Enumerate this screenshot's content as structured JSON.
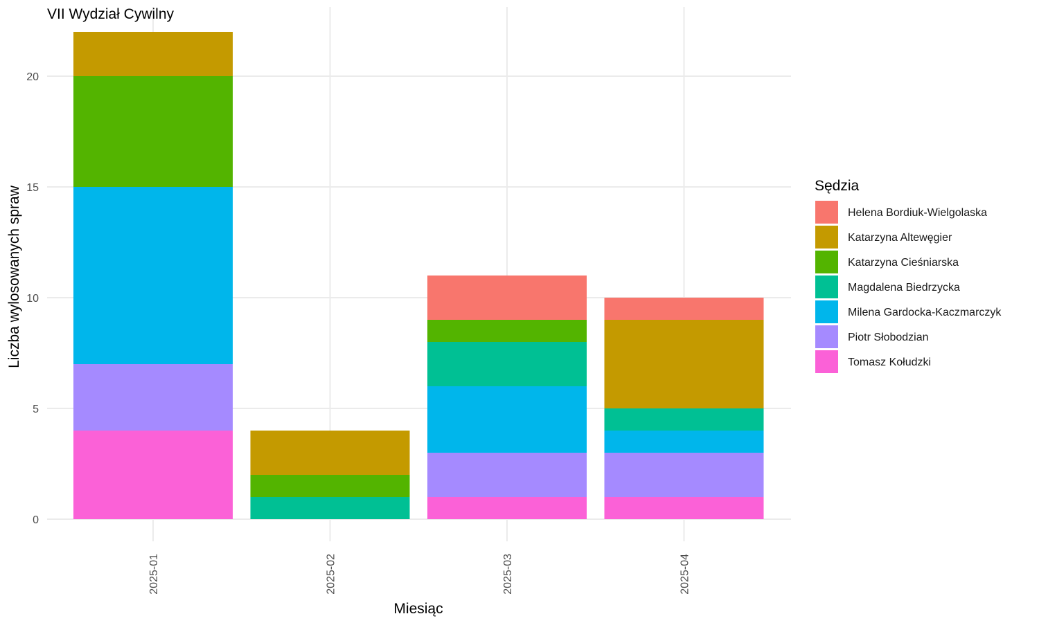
{
  "chart_data": {
    "type": "bar",
    "stacked": true,
    "title": "VII Wydział Cywilny",
    "xlabel": "Miesiąc",
    "ylabel": "Liczba wylosowanych spraw",
    "categories": [
      "2025-01",
      "2025-02",
      "2025-03",
      "2025-04"
    ],
    "ylim": [
      0,
      22
    ],
    "yticks": [
      0,
      5,
      10,
      15,
      20
    ],
    "grid": true,
    "legend": {
      "title": "Sędzia",
      "position": "right"
    },
    "series": [
      {
        "name": "Helena Bordiuk-Wielgolaska",
        "color": "#F8766D",
        "values": [
          0,
          0,
          2,
          1
        ]
      },
      {
        "name": "Katarzyna Altewęgier",
        "color": "#C49A00",
        "values": [
          2,
          2,
          0,
          4
        ]
      },
      {
        "name": "Katarzyna Cieśniarska",
        "color": "#53B400",
        "values": [
          5,
          1,
          1,
          0
        ]
      },
      {
        "name": "Magdalena Biedrzycka",
        "color": "#00C094",
        "values": [
          0,
          1,
          2,
          1
        ]
      },
      {
        "name": "Milena Gardocka-Kaczmarczyk",
        "color": "#00B6EB",
        "values": [
          8,
          0,
          3,
          1
        ]
      },
      {
        "name": "Piotr Słobodzian",
        "color": "#A58AFF",
        "values": [
          3,
          0,
          2,
          2
        ]
      },
      {
        "name": "Tomasz Kołudzki",
        "color": "#FB61D7",
        "values": [
          4,
          0,
          1,
          1
        ]
      }
    ]
  }
}
